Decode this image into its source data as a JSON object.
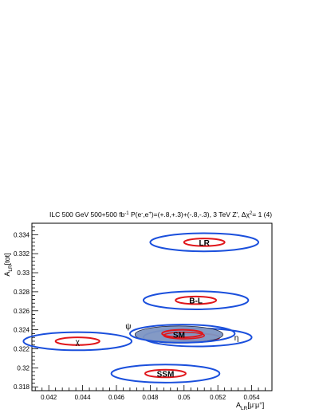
{
  "chart_data": {
    "type": "scatter",
    "title": "ILC 500 GeV 500+500 fb",
    "title_sup": "-1",
    "title_rest": " P(e",
    "title_sup2": "-",
    "title_rest2": ",e",
    "title_sup3": "+",
    "title_rest3": ")=(+.8,+.3)+(-.8,-.3), 3 TeV Z', Δχ",
    "title_sup4": "2",
    "title_rest4": "= 1 (4)",
    "xlabel_main": "A",
    "xlabel_sub": "LR",
    "xlabel_rest": "[μ",
    "xlabel_sup1": "-",
    "xlabel_mu": "μ",
    "xlabel_sup2": "+",
    "xlabel_end": "]",
    "ylabel_main": "A",
    "ylabel_sub": "LR",
    "ylabel_rest": "[tot]",
    "xlim": [
      0.041,
      0.0552
    ],
    "ylim": [
      0.3176,
      0.3352
    ],
    "x_ticks": [
      0.042,
      0.044,
      0.046,
      0.048,
      0.05,
      0.052,
      0.054
    ],
    "x_tick_labels": [
      "0.042",
      "0.044",
      "0.046",
      "0.048",
      "0.05",
      "0.052",
      "0.054"
    ],
    "y_ticks": [
      0.318,
      0.32,
      0.322,
      0.324,
      0.326,
      0.328,
      0.33,
      0.332,
      0.334
    ],
    "y_tick_labels": [
      "0.318",
      "0.32",
      "0.322",
      "0.324",
      "0.326",
      "0.328",
      "0.33",
      "0.332",
      "0.334"
    ],
    "colors": {
      "outer": "#1a4fdc",
      "inner": "#e0161b",
      "fill": "#7d95c2"
    },
    "models": [
      {
        "name": "LR",
        "label": "LR",
        "bold": true,
        "x": 0.0512,
        "y": 0.3332,
        "outer_rx": 0.0032,
        "outer_ry": 0.00095,
        "inner_rx": 0.0012,
        "inner_ry": 0.0004
      },
      {
        "name": "B-L",
        "label": "B-L",
        "bold": true,
        "x": 0.0507,
        "y": 0.3271,
        "outer_rx": 0.0031,
        "outer_ry": 0.00095,
        "inner_rx": 0.0012,
        "inner_ry": 0.0004
      },
      {
        "name": "chi",
        "label": "χ",
        "bold": false,
        "x": 0.0437,
        "y": 0.3228,
        "outer_rx": 0.0032,
        "outer_ry": 0.00095,
        "inner_rx": 0.0013,
        "inner_ry": 0.0004
      },
      {
        "name": "SSM",
        "label": "SSM",
        "bold": true,
        "x": 0.0489,
        "y": 0.3194,
        "outer_rx": 0.0032,
        "outer_ry": 0.00095,
        "inner_rx": 0.0012,
        "inner_ry": 0.0004
      }
    ],
    "eta": {
      "label": "η",
      "x": 0.0508,
      "y": 0.3232,
      "outer_rx": 0.0032,
      "outer_ry": 0.00095,
      "inner_rx": 0.0013,
      "inner_ry": 0.0004
    },
    "psi": {
      "label": "ψ",
      "x": 0.0499,
      "y": 0.3236,
      "outer_rx": 0.0031,
      "outer_ry": 0.00095,
      "inner_rx": 0.0012,
      "inner_ry": 0.0004
    },
    "sm": {
      "label": "SM",
      "x": 0.0497,
      "y": 0.3235,
      "rx": 0.0026,
      "ry": 0.0009
    }
  }
}
